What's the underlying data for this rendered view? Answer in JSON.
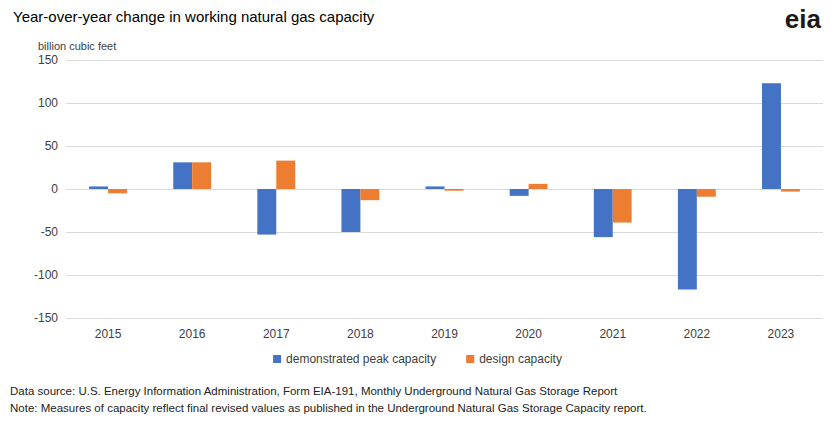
{
  "chart_data": {
    "type": "bar",
    "title": "Year-over-year change in working natural gas capacity",
    "y_label": "billion cubic feet",
    "logo": "eia",
    "categories": [
      "2015",
      "2016",
      "2017",
      "2018",
      "2019",
      "2020",
      "2021",
      "2022",
      "2023"
    ],
    "series": [
      {
        "name": "demonstrated peak capacity",
        "color": "#4472c4",
        "values": [
          3,
          31,
          -53,
          -50,
          3,
          -8,
          -56,
          -117,
          123
        ]
      },
      {
        "name": "design capacity",
        "color": "#ed7d31",
        "values": [
          -5,
          31,
          33,
          -13,
          -2,
          6,
          -39,
          -9,
          -3
        ]
      }
    ],
    "ylim": [
      -150,
      150
    ],
    "yticks": [
      -150,
      -100,
      -50,
      0,
      50,
      100,
      150
    ],
    "grid": true,
    "legend": "bottom",
    "notes": [
      "Data source: U.S. Energy Information Administration, Form EIA-191, Monthly Underground Natural Gas Storage Report",
      "Note: Measures of capacity reflect final revised values as published in the Underground Natural Gas Storage Capacity report."
    ]
  }
}
